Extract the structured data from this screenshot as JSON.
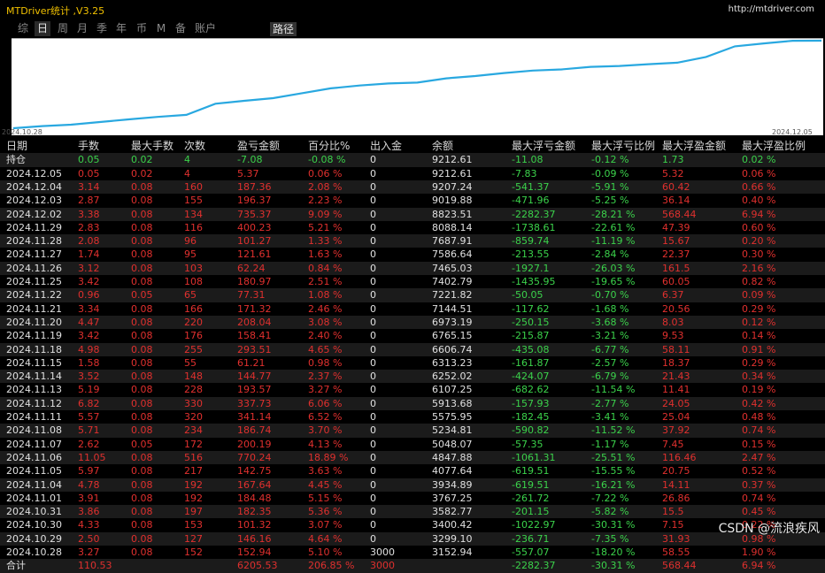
{
  "window": {
    "title": "MTDriver统计 ,V3.25",
    "url": "http://mtdriver.com"
  },
  "tabs": [
    "综",
    "日",
    "周",
    "月",
    "季",
    "年",
    "币",
    "M",
    "备",
    "账户"
  ],
  "active_tab": 1,
  "path_button": "路径",
  "chart": {
    "start_label": "2024.10.28",
    "end_label": "2024.12.05",
    "line_color": "#29a8e0",
    "balance": [
      3152.94,
      3299.1,
      3400.42,
      3582.77,
      3767.25,
      3934.89,
      4077.64,
      4847.88,
      5048.07,
      5234.81,
      5575.95,
      5913.68,
      6107.25,
      6252.02,
      6313.23,
      6606.74,
      6765.15,
      6973.19,
      7144.51,
      7221.82,
      7402.79,
      7465.03,
      7586.64,
      7687.91,
      8088.14,
      8823.51,
      9019.88,
      9207.24,
      9212.61
    ]
  },
  "colors": {
    "positive": "#e0302e",
    "negative": "#3bd24b",
    "text": "#e0e0e0"
  },
  "table": {
    "columns": [
      "日期",
      "手数",
      "最大手数",
      "次数",
      "盈亏金额",
      "百分比%",
      "出入金",
      "余额",
      "最大浮亏金额",
      "最大浮亏比例",
      "最大浮盈金额",
      "最大浮盈比例"
    ],
    "holding": [
      "持仓",
      "0.05",
      "0.02",
      "4",
      "-7.08",
      "-0.08 %",
      "0",
      "9212.61",
      "-11.08",
      "-0.12 %",
      "1.73",
      "0.02 %"
    ],
    "rows": [
      [
        "2024.12.05",
        "0.05",
        "0.02",
        "4",
        "5.37",
        "0.06 %",
        "0",
        "9212.61",
        "-7.83",
        "-0.09 %",
        "5.32",
        "0.06 %"
      ],
      [
        "2024.12.04",
        "3.14",
        "0.08",
        "160",
        "187.36",
        "2.08 %",
        "0",
        "9207.24",
        "-541.37",
        "-5.91 %",
        "60.42",
        "0.66 %"
      ],
      [
        "2024.12.03",
        "2.87",
        "0.08",
        "155",
        "196.37",
        "2.23 %",
        "0",
        "9019.88",
        "-471.96",
        "-5.25 %",
        "36.14",
        "0.40 %"
      ],
      [
        "2024.12.02",
        "3.38",
        "0.08",
        "134",
        "735.37",
        "9.09 %",
        "0",
        "8823.51",
        "-2282.37",
        "-28.21 %",
        "568.44",
        "6.94 %"
      ],
      [
        "2024.11.29",
        "2.83",
        "0.08",
        "116",
        "400.23",
        "5.21 %",
        "0",
        "8088.14",
        "-1738.61",
        "-22.61 %",
        "47.39",
        "0.60 %"
      ],
      [
        "2024.11.28",
        "2.08",
        "0.08",
        "96",
        "101.27",
        "1.33 %",
        "0",
        "7687.91",
        "-859.74",
        "-11.19 %",
        "15.67",
        "0.20 %"
      ],
      [
        "2024.11.27",
        "1.74",
        "0.08",
        "95",
        "121.61",
        "1.63 %",
        "0",
        "7586.64",
        "-213.55",
        "-2.84 %",
        "22.37",
        "0.30 %"
      ],
      [
        "2024.11.26",
        "3.12",
        "0.08",
        "103",
        "62.24",
        "0.84 %",
        "0",
        "7465.03",
        "-1927.1",
        "-26.03 %",
        "161.5",
        "2.16 %"
      ],
      [
        "2024.11.25",
        "3.42",
        "0.08",
        "108",
        "180.97",
        "2.51 %",
        "0",
        "7402.79",
        "-1435.95",
        "-19.65 %",
        "60.05",
        "0.82 %"
      ],
      [
        "2024.11.22",
        "0.96",
        "0.05",
        "65",
        "77.31",
        "1.08 %",
        "0",
        "7221.82",
        "-50.05",
        "-0.70 %",
        "6.37",
        "0.09 %"
      ],
      [
        "2024.11.21",
        "3.34",
        "0.08",
        "166",
        "171.32",
        "2.46 %",
        "0",
        "7144.51",
        "-117.62",
        "-1.68 %",
        "20.56",
        "0.29 %"
      ],
      [
        "2024.11.20",
        "4.47",
        "0.08",
        "220",
        "208.04",
        "3.08 %",
        "0",
        "6973.19",
        "-250.15",
        "-3.68 %",
        "8.03",
        "0.12 %"
      ],
      [
        "2024.11.19",
        "3.42",
        "0.08",
        "176",
        "158.41",
        "2.40 %",
        "0",
        "6765.15",
        "-215.87",
        "-3.21 %",
        "9.53",
        "0.14 %"
      ],
      [
        "2024.11.18",
        "4.98",
        "0.08",
        "255",
        "293.51",
        "4.65 %",
        "0",
        "6606.74",
        "-435.08",
        "-6.77 %",
        "58.11",
        "0.91 %"
      ],
      [
        "2024.11.15",
        "1.58",
        "0.08",
        "55",
        "61.21",
        "0.98 %",
        "0",
        "6313.23",
        "-161.87",
        "-2.57 %",
        "18.37",
        "0.29 %"
      ],
      [
        "2024.11.14",
        "3.52",
        "0.08",
        "148",
        "144.77",
        "2.37 %",
        "0",
        "6252.02",
        "-424.07",
        "-6.79 %",
        "21.43",
        "0.34 %"
      ],
      [
        "2024.11.13",
        "5.19",
        "0.08",
        "228",
        "193.57",
        "3.27 %",
        "0",
        "6107.25",
        "-682.62",
        "-11.54 %",
        "11.41",
        "0.19 %"
      ],
      [
        "2024.11.12",
        "6.82",
        "0.08",
        "330",
        "337.73",
        "6.06 %",
        "0",
        "5913.68",
        "-157.93",
        "-2.77 %",
        "24.05",
        "0.42 %"
      ],
      [
        "2024.11.11",
        "5.57",
        "0.08",
        "320",
        "341.14",
        "6.52 %",
        "0",
        "5575.95",
        "-182.45",
        "-3.41 %",
        "25.04",
        "0.48 %"
      ],
      [
        "2024.11.08",
        "5.71",
        "0.08",
        "234",
        "186.74",
        "3.70 %",
        "0",
        "5234.81",
        "-590.82",
        "-11.52 %",
        "37.92",
        "0.74 %"
      ],
      [
        "2024.11.07",
        "2.62",
        "0.05",
        "172",
        "200.19",
        "4.13 %",
        "0",
        "5048.07",
        "-57.35",
        "-1.17 %",
        "7.45",
        "0.15 %"
      ],
      [
        "2024.11.06",
        "11.05",
        "0.08",
        "516",
        "770.24",
        "18.89 %",
        "0",
        "4847.88",
        "-1061.31",
        "-25.51 %",
        "116.46",
        "2.47 %"
      ],
      [
        "2024.11.05",
        "5.97",
        "0.08",
        "217",
        "142.75",
        "3.63 %",
        "0",
        "4077.64",
        "-619.51",
        "-15.55 %",
        "20.75",
        "0.52 %"
      ],
      [
        "2024.11.04",
        "4.78",
        "0.08",
        "192",
        "167.64",
        "4.45 %",
        "0",
        "3934.89",
        "-619.51",
        "-16.21 %",
        "14.11",
        "0.37 %"
      ],
      [
        "2024.11.01",
        "3.91",
        "0.08",
        "192",
        "184.48",
        "5.15 %",
        "0",
        "3767.25",
        "-261.72",
        "-7.22 %",
        "26.86",
        "0.74 %"
      ],
      [
        "2024.10.31",
        "3.86",
        "0.08",
        "197",
        "182.35",
        "5.36 %",
        "0",
        "3582.77",
        "-201.15",
        "-5.82 %",
        "15.5",
        "0.45 %"
      ],
      [
        "2024.10.30",
        "4.33",
        "0.08",
        "153",
        "101.32",
        "3.07 %",
        "0",
        "3400.42",
        "-1022.97",
        "-30.31 %",
        "7.15",
        "0.22 %"
      ],
      [
        "2024.10.29",
        "2.50",
        "0.08",
        "127",
        "146.16",
        "4.64 %",
        "0",
        "3299.10",
        "-236.71",
        "-7.35 %",
        "31.93",
        "0.98 %"
      ],
      [
        "2024.10.28",
        "3.27",
        "0.08",
        "152",
        "152.94",
        "5.10 %",
        "3000",
        "3152.94",
        "-557.07",
        "-18.20 %",
        "58.55",
        "1.90 %"
      ]
    ],
    "total": [
      "合计",
      "110.53",
      "",
      "",
      "6205.53",
      "206.85 %",
      "3000",
      "",
      "-2282.37",
      "-30.31 %",
      "568.44",
      "6.94 %"
    ]
  },
  "watermark": "CSDN @流浪疾风"
}
